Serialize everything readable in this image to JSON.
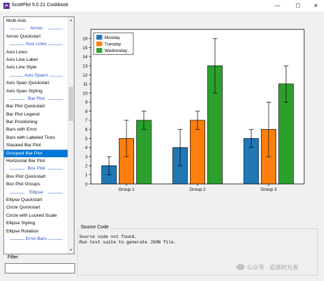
{
  "window": {
    "title": "ScottPlot 5.0.21 Cookbook",
    "controls": {
      "minimize": "—",
      "maximize": "☐",
      "close": "✕"
    }
  },
  "sidebar": {
    "entries": [
      {
        "type": "item",
        "label": "Multi-Axis"
      },
      {
        "type": "category",
        "label": "Arrow"
      },
      {
        "type": "item",
        "label": "Arrow Quickstart"
      },
      {
        "type": "category",
        "label": "Axis Lines"
      },
      {
        "type": "item",
        "label": "Axis Lines"
      },
      {
        "type": "item",
        "label": "Axis Line Label"
      },
      {
        "type": "item",
        "label": "Axis Line Style"
      },
      {
        "type": "category",
        "label": "Axis Spans"
      },
      {
        "type": "item",
        "label": "Axis Span Quickstart"
      },
      {
        "type": "item",
        "label": "Axis Span Styling"
      },
      {
        "type": "category",
        "label": "Bar Plot"
      },
      {
        "type": "item",
        "label": "Bar Plot Quickstart"
      },
      {
        "type": "item",
        "label": "Bar Plot Legend"
      },
      {
        "type": "item",
        "label": "Bar Positioning"
      },
      {
        "type": "item",
        "label": "Bars with Error"
      },
      {
        "type": "item",
        "label": "Bars with Labeled Ticks"
      },
      {
        "type": "item",
        "label": "Stacked Bar Plot"
      },
      {
        "type": "item",
        "label": "Grouped Bar Plot",
        "selected": true
      },
      {
        "type": "item",
        "label": "Horizontal Bar Plot"
      },
      {
        "type": "category",
        "label": "Box Plot"
      },
      {
        "type": "item",
        "label": "Box Plot Quickstart"
      },
      {
        "type": "item",
        "label": "Box Plot Groups"
      },
      {
        "type": "category",
        "label": "Ellipse"
      },
      {
        "type": "item",
        "label": "Ellipse Quickstart"
      },
      {
        "type": "item",
        "label": "Circle Quickstart"
      },
      {
        "type": "item",
        "label": "Circle with Locked Scale"
      },
      {
        "type": "item",
        "label": "Ellipse Styling"
      },
      {
        "type": "item",
        "label": "Ellipse Rotation"
      },
      {
        "type": "category",
        "label": "Error Bars"
      }
    ],
    "filter_label": "Filter",
    "filter_value": ""
  },
  "source": {
    "label": "Source Code",
    "lines": [
      "Source code not found.",
      "Run test suite to generate JSON file."
    ]
  },
  "watermark": "公众号 · 追逐时光者",
  "colors": {
    "selection": "#0078d7",
    "category_text": "#1f4fd1"
  },
  "chart_data": {
    "type": "bar",
    "categories": [
      "Group 1",
      "Group 2",
      "Group 3"
    ],
    "series": [
      {
        "name": "Monday",
        "color": "#1f77b4",
        "values": [
          2,
          4,
          5
        ],
        "errors": [
          1,
          2,
          1
        ]
      },
      {
        "name": "Tuesday",
        "color": "#ff7f0e",
        "values": [
          5,
          7,
          6
        ],
        "errors": [
          2,
          1,
          3
        ]
      },
      {
        "name": "Wednesday",
        "color": "#2ca02c",
        "values": [
          7,
          13,
          11
        ],
        "errors": [
          1,
          3,
          2
        ]
      }
    ],
    "ylim": [
      0,
      17
    ],
    "yticks": [
      0,
      1,
      2,
      3,
      4,
      5,
      6,
      7,
      8,
      9,
      10,
      11,
      12,
      13,
      14,
      15,
      16
    ],
    "legend_position": "top-left",
    "grid": false
  }
}
